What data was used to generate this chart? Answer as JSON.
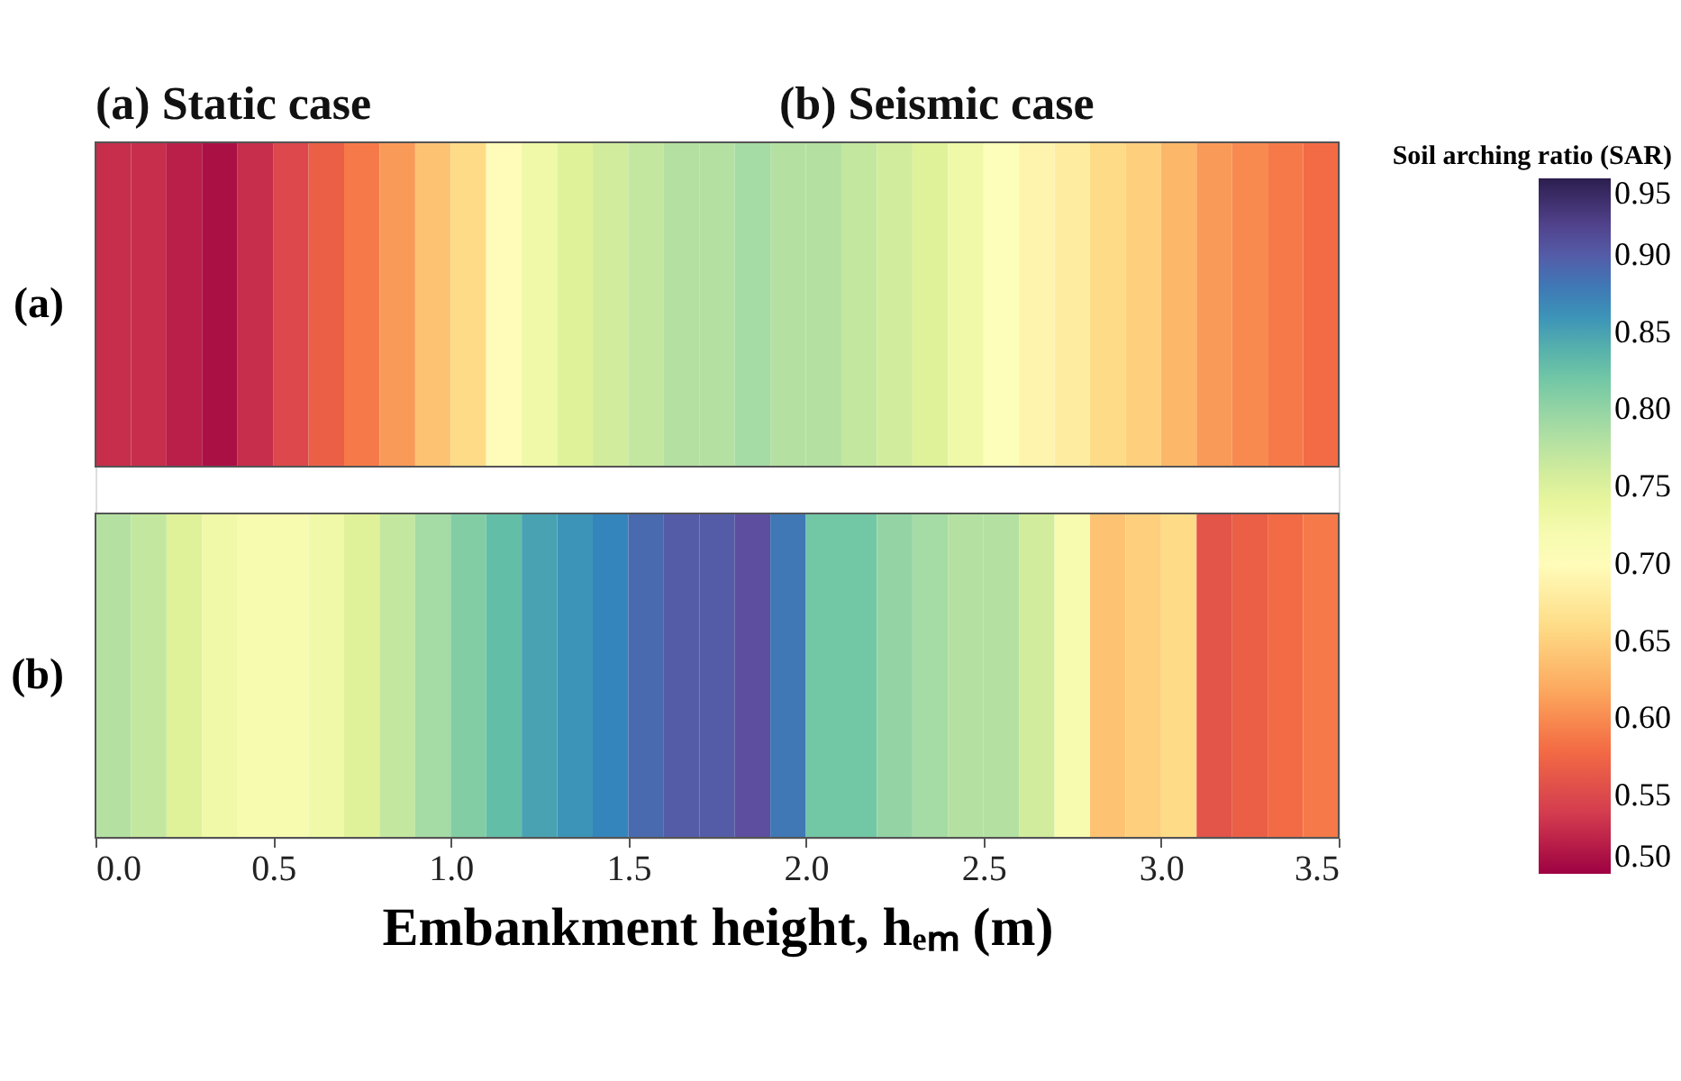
{
  "chart_data": {
    "type": "heatmap",
    "annotations": [
      "(a) Static case",
      "(b) Seismic case"
    ],
    "clabel": "Soil arching ratio (SAR)",
    "xlabel": "Embankment height, hₑₘ (m)",
    "x": [
      0.05,
      0.15,
      0.25,
      0.35,
      0.45,
      0.55,
      0.65,
      0.75,
      0.85,
      0.95,
      1.05,
      1.15,
      1.25,
      1.35,
      1.45,
      1.55,
      1.65,
      1.75,
      1.85,
      1.95,
      2.05,
      2.15,
      2.25,
      2.35,
      2.45,
      2.55,
      2.65,
      2.75,
      2.85,
      2.95,
      3.05,
      3.15,
      3.25,
      3.35,
      3.45
    ],
    "y_categories": [
      "(a)",
      "(b)"
    ],
    "cells": [
      [
        0.53,
        0.53,
        0.52,
        0.51,
        0.53,
        0.55,
        0.57,
        0.59,
        0.61,
        0.64,
        0.66,
        0.7,
        0.73,
        0.75,
        0.76,
        0.77,
        0.78,
        0.78,
        0.79,
        0.78,
        0.78,
        0.77,
        0.76,
        0.75,
        0.73,
        0.71,
        0.69,
        0.68,
        0.66,
        0.65,
        0.63,
        0.61,
        0.6,
        0.59,
        0.58
      ],
      [
        0.78,
        0.77,
        0.75,
        0.73,
        0.72,
        0.72,
        0.73,
        0.75,
        0.77,
        0.79,
        0.81,
        0.83,
        0.85,
        0.86,
        0.87,
        0.89,
        0.9,
        0.9,
        0.91,
        0.88,
        0.82,
        0.82,
        0.8,
        0.79,
        0.78,
        0.78,
        0.76,
        0.72,
        0.64,
        0.65,
        0.66,
        0.56,
        0.57,
        0.58,
        0.59
      ]
    ],
    "xlim": [
      0,
      3.5
    ],
    "xticks": [
      {
        "value": 0,
        "label": "0.0"
      },
      0.5,
      {
        "value": 1,
        "label": "1.0"
      },
      1.5,
      {
        "value": 2,
        "label": "2.0"
      },
      2.5,
      {
        "value": 3,
        "label": "3.0"
      },
      3.5
    ],
    "clim": [
      0.5,
      0.95
    ],
    "cticks": [
      {
        "value": 0.5,
        "label": "0.50"
      },
      0.55,
      {
        "value": 0.6,
        "label": "0.60"
      },
      0.65,
      {
        "value": 0.7,
        "label": "0.70"
      },
      0.75,
      {
        "value": 0.8,
        "label": "0.80"
      },
      0.85,
      {
        "value": 0.9,
        "label": "0.90"
      },
      0.95
    ]
  }
}
